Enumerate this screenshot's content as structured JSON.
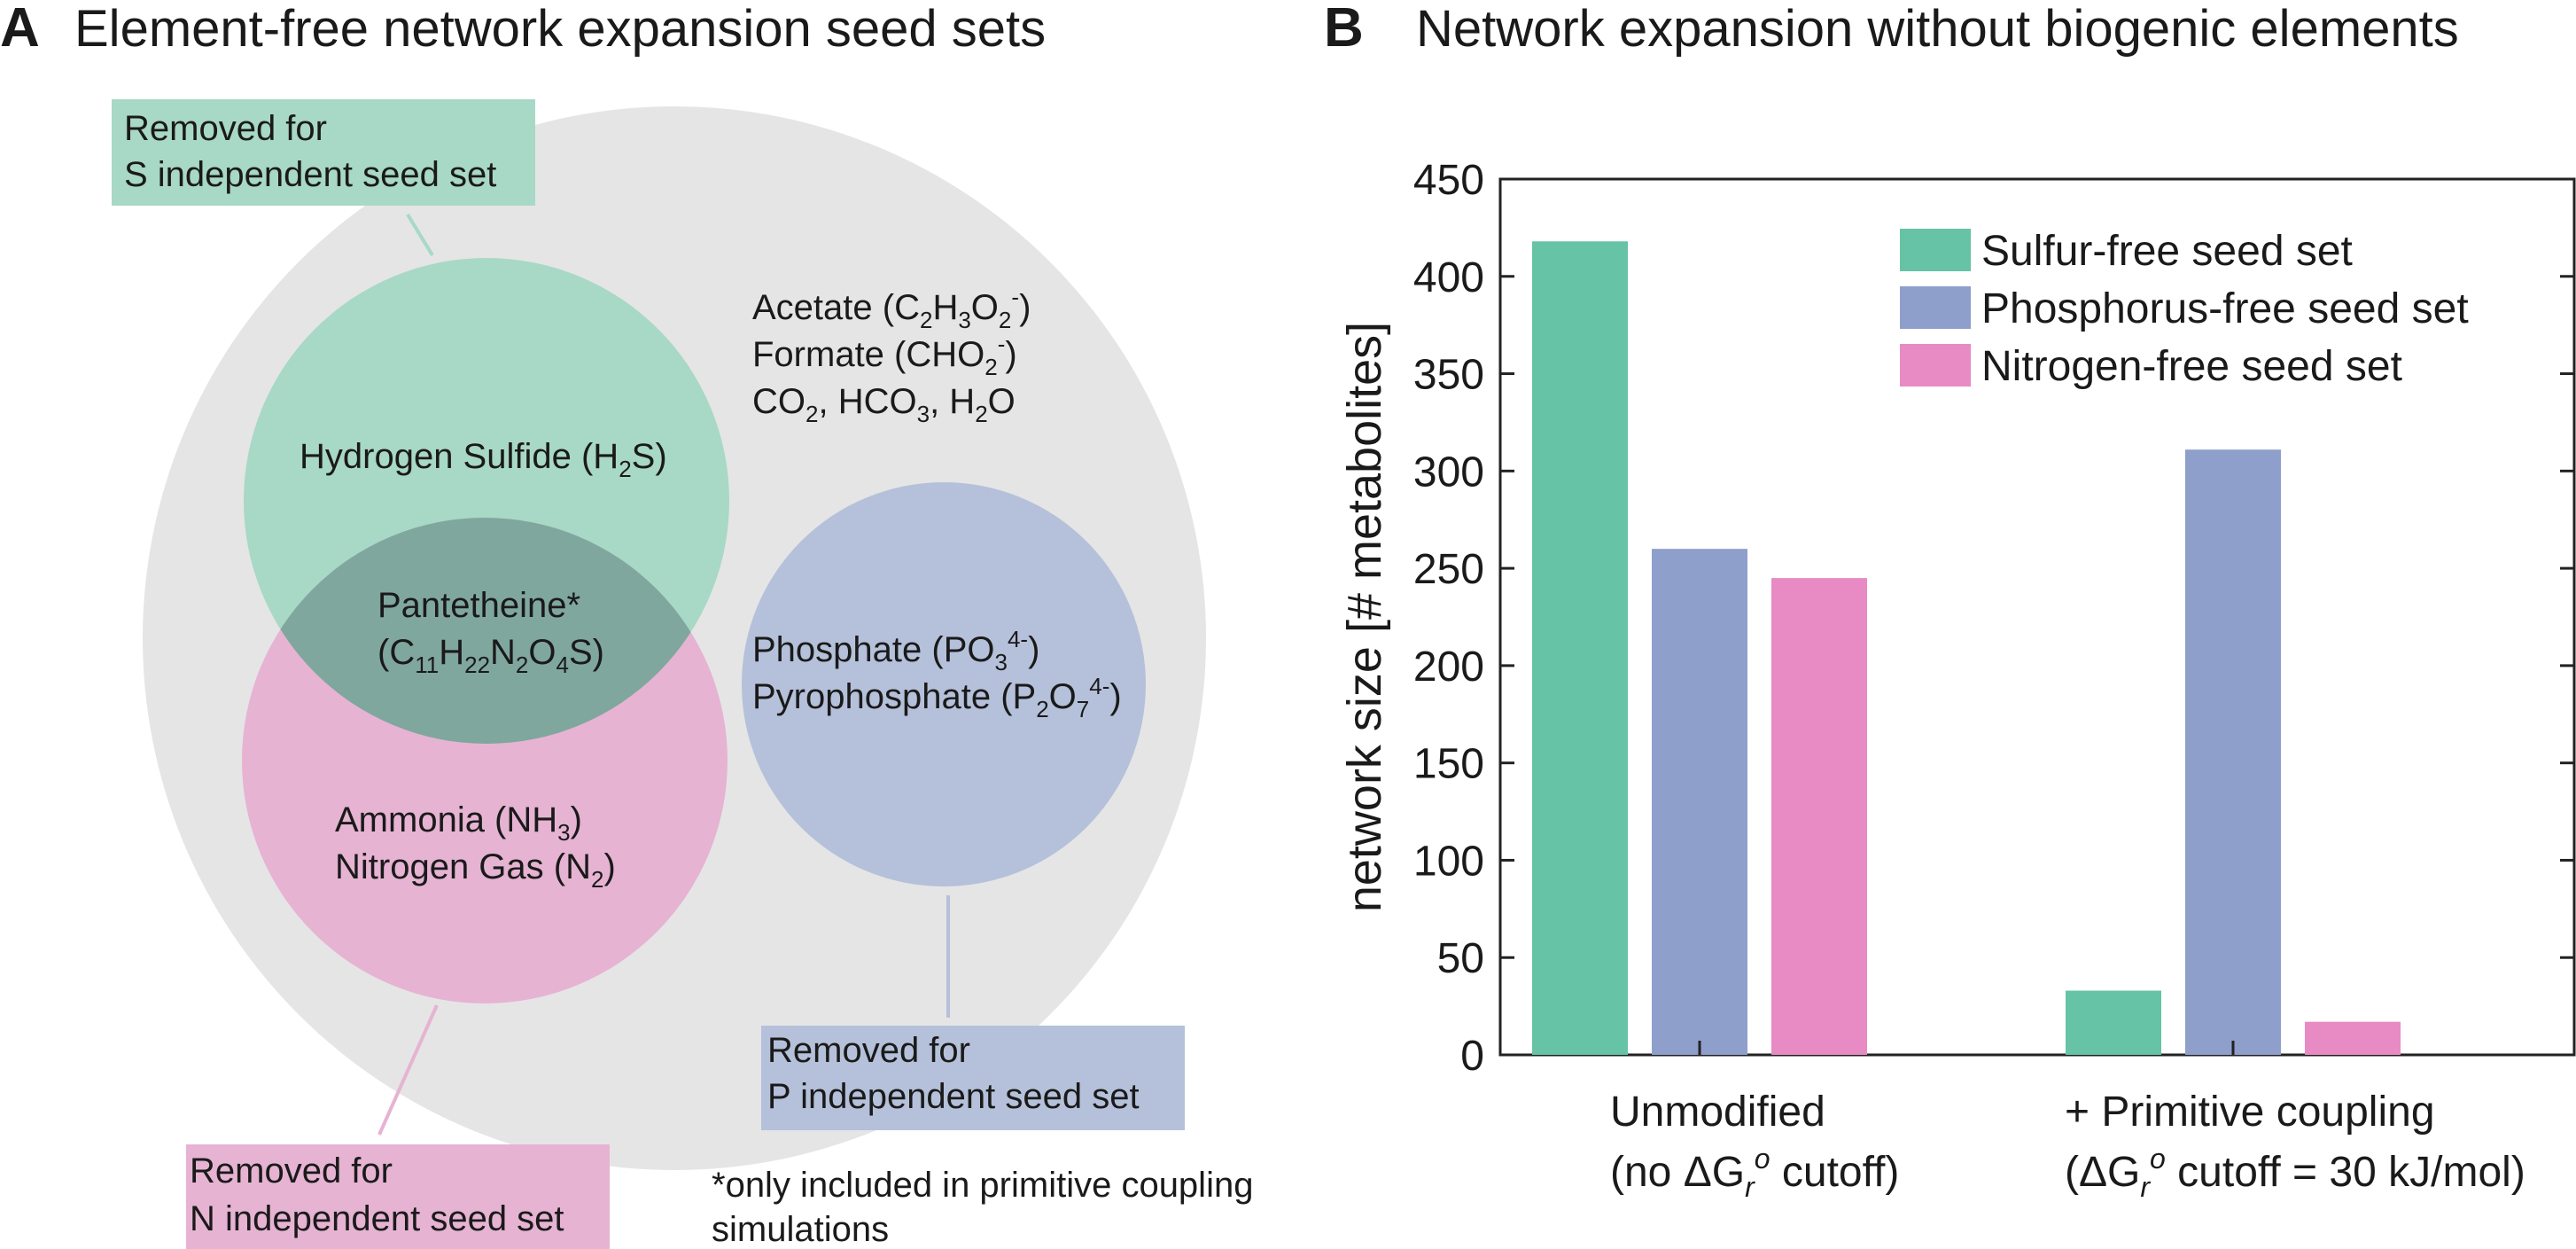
{
  "colors": {
    "sulfur": "#66c3a5",
    "phosphorus": "#8e9fcb",
    "nitrogen": "#e88ac3",
    "outer": "#e5e5e5",
    "sulfur_light": "#a8d8c6",
    "phosphorus_light": "#b5c1da",
    "nitrogen_light": "#e6b3d3",
    "overlap": "#7fa79d"
  },
  "panel_a": {
    "letter": "A",
    "title": "Element-free network expansion seed sets",
    "s_box": {
      "line1": "Removed for",
      "line2": "S independent seed set"
    },
    "n_box": {
      "line1": "Removed for",
      "line2": "N independent seed set"
    },
    "p_box": {
      "line1": "Removed for",
      "line2": "P independent seed set"
    },
    "general": {
      "acetate": {
        "text": "Acetate (C",
        "s1": "2",
        "t2": "H",
        "s2": "3",
        "t3": "O",
        "s3": "2",
        "sup": "-",
        "t4": ")"
      },
      "formate": {
        "text": "Formate (CHO",
        "s1": "2",
        "sup": "-",
        "t2": ")"
      },
      "inorganic": {
        "text": "CO",
        "s1": "2",
        "t2": ", HCO",
        "s2": "3",
        "t3": ", H",
        "s3": "2",
        "t4": "O"
      }
    },
    "sulfur": {
      "text": "Hydrogen Sulfide (H",
      "s1": "2",
      "t2": "S)"
    },
    "pantetheine": {
      "line1": "Pantetheine*",
      "t1": "(C",
      "s1": "11",
      "t2": "H",
      "s2": "22",
      "t3": "N",
      "s3": "2",
      "t4": "O",
      "s4": "4",
      "t5": "S)"
    },
    "nitrogen": {
      "ammonia": {
        "text": "Ammonia (NH",
        "s1": "3",
        "t2": ")"
      },
      "n2": {
        "text": "Nitrogen Gas (N",
        "s1": "2",
        "t2": ")"
      }
    },
    "phosphorus": {
      "phosphate": {
        "text": "Phosphate (PO",
        "s1": "3",
        "sup": "4-",
        "t2": ")"
      },
      "pyro": {
        "text": "Pyrophosphate (P",
        "s1": "2",
        "t2": "O",
        "s2": "7",
        "sup": "4-",
        "t3": ")"
      }
    },
    "footnote": {
      "line1": "*only included in primitive coupling",
      "line2": "simulations"
    }
  },
  "panel_b": {
    "letter": "B",
    "title": "Network expansion without biogenic elements"
  },
  "chart_data": {
    "type": "bar",
    "title": "Network expansion without biogenic elements",
    "ylabel": "network size [# metabolites]",
    "xlabel": "",
    "ylim": [
      0,
      450
    ],
    "yticks": [
      0,
      50,
      100,
      150,
      200,
      250,
      300,
      350,
      400,
      450
    ],
    "categories": [
      {
        "line1": "Unmodified",
        "line2a": "(no ΔG",
        "line2sub": "r",
        "line2sup": "o",
        "line2b": " cutoff)"
      },
      {
        "line1": "+ Primitive coupling",
        "line2a": "(ΔG",
        "line2sub": "r",
        "line2sup": "o",
        "line2b": " cutoff = 30 kJ/mol)"
      }
    ],
    "series": [
      {
        "name": "Sulfur-free seed set",
        "color": "#66c3a5",
        "values": [
          418,
          33
        ]
      },
      {
        "name": "Phosphorus-free seed set",
        "color": "#8e9fcb",
        "values": [
          260,
          311
        ]
      },
      {
        "name": "Nitrogen-free seed set",
        "color": "#e88ac3",
        "values": [
          245,
          17
        ]
      }
    ],
    "legend_position": "top-right",
    "grid": false
  }
}
